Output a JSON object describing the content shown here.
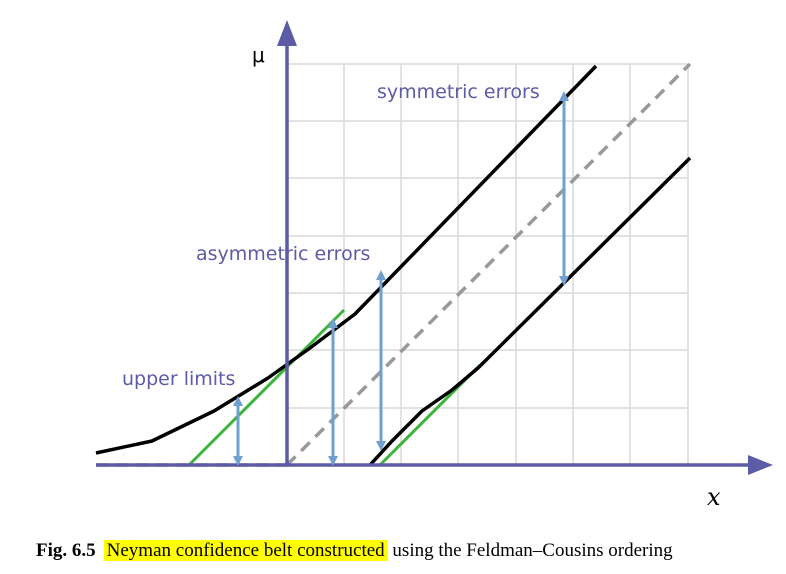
{
  "figure": {
    "y_axis_label": "μ",
    "x_axis_label": "x",
    "annotations": {
      "symmetric": "symmetric errors",
      "asymmetric": "asymmetric errors",
      "upper": "upper limits"
    },
    "colors": {
      "axis": "#5b5ba6",
      "belt": "#000000",
      "green": "#3cb43c",
      "arrow": "#6fa0d0",
      "dashed": "#999999",
      "grid": "#d9d9d9"
    }
  },
  "caption": {
    "number": "Fig. 6.5",
    "highlighted": "Neyman confidence belt constructed",
    "rest": " using the Feldman–Cousins ordering"
  }
}
